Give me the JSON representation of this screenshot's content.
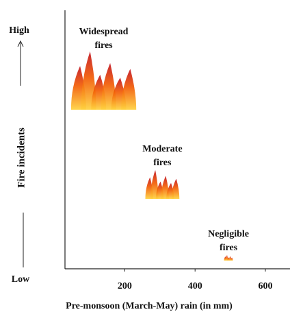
{
  "chart_data": {
    "type": "scatter",
    "x_label": "Pre-monsoon (March-May) rain (in mm)",
    "y_label": "Fire incidents",
    "y_high_label": "High",
    "y_low_label": "Low",
    "xlim": [
      30,
      670
    ],
    "xticks": [
      200,
      400,
      600
    ],
    "points": [
      {
        "label": [
          "Widespread",
          "fires"
        ],
        "x": 140
      },
      {
        "label": [
          "Moderate",
          "fires"
        ],
        "x": 307
      },
      {
        "label": [
          "Negligible",
          "fires"
        ],
        "x": 495
      }
    ]
  }
}
